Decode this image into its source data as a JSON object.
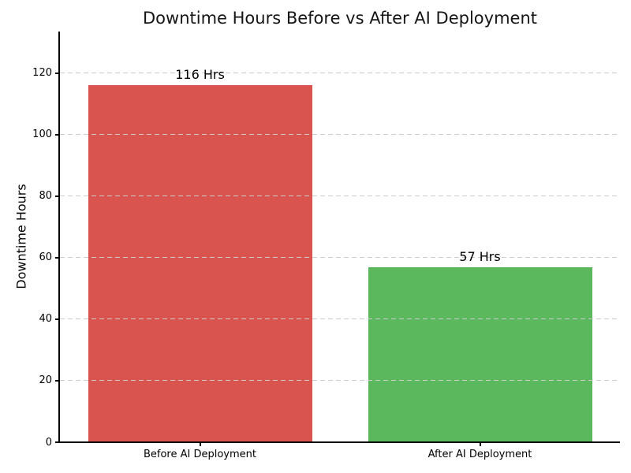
{
  "chart_data": {
    "type": "bar",
    "title": "Downtime Hours Before vs After AI Deployment",
    "xlabel": "",
    "ylabel": "Downtime Hours",
    "categories": [
      "Before AI Deployment",
      "After AI Deployment"
    ],
    "values": [
      116,
      57
    ],
    "value_labels": [
      "116 Hrs",
      "57 Hrs"
    ],
    "bar_colors": [
      "#d9534f",
      "#5cb85c"
    ],
    "yticks": [
      0,
      20,
      40,
      60,
      80,
      100,
      120
    ],
    "ylim": [
      0,
      133.5
    ],
    "bar_width_fraction": 0.8,
    "grid": {
      "axis": "y",
      "style": "dashed",
      "color": "#cbcbcb",
      "drawn_over_bars": true
    },
    "legend": "none",
    "background_color": "#ffffff",
    "text_color": "#000000",
    "spine_color": "#000000"
  }
}
